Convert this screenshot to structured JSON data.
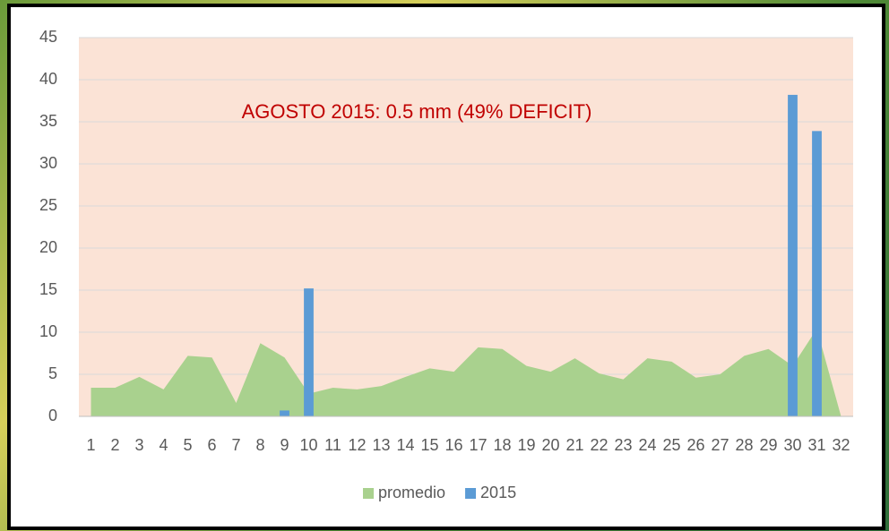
{
  "chart_data": {
    "type": "area-bar",
    "annotation": "AGOSTO 2015: 0.5 mm (49% DEFICIT)",
    "categories": [
      "1",
      "2",
      "3",
      "4",
      "5",
      "6",
      "7",
      "8",
      "9",
      "10",
      "11",
      "12",
      "13",
      "14",
      "15",
      "16",
      "17",
      "18",
      "19",
      "20",
      "21",
      "22",
      "23",
      "24",
      "25",
      "26",
      "27",
      "28",
      "29",
      "30",
      "31",
      "32"
    ],
    "series": [
      {
        "name": "promedio",
        "color": "#a9d18e",
        "kind": "area",
        "values": [
          3.4,
          3.4,
          4.7,
          3.2,
          7.2,
          7.0,
          1.6,
          8.7,
          7.0,
          2.7,
          3.4,
          3.2,
          3.6,
          4.7,
          5.7,
          5.3,
          8.2,
          8.0,
          6.0,
          5.3,
          6.9,
          5.1,
          4.4,
          6.9,
          6.5,
          4.6,
          5.0,
          7.2,
          8.0,
          6.0,
          10.4,
          0
        ]
      },
      {
        "name": "2015",
        "color": "#5b9bd5",
        "kind": "bar",
        "values": [
          0,
          0,
          0,
          0,
          0,
          0,
          0,
          0,
          0.7,
          15.2,
          0,
          0,
          0,
          0,
          0,
          0,
          0,
          0,
          0,
          0,
          0,
          0,
          0,
          0,
          0,
          0,
          0,
          0,
          0,
          38.2,
          33.9,
          0
        ]
      }
    ],
    "ylim": [
      0,
      45
    ],
    "yticks": [
      0,
      5,
      10,
      15,
      20,
      25,
      30,
      35,
      40,
      45
    ],
    "grid": true,
    "legend": "bottom"
  }
}
